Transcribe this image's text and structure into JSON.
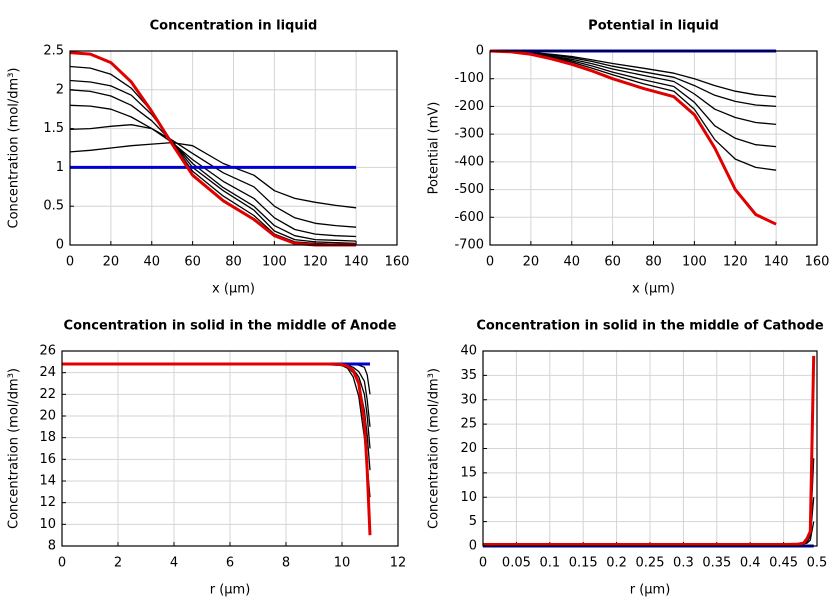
{
  "chart_data": [
    {
      "type": "line",
      "title": "Concentration in liquid",
      "x_label": "x (µm)",
      "y_label": "Concentration (mol/dm³)",
      "x": [
        0,
        10,
        20,
        30,
        40,
        50,
        60,
        75,
        90,
        100,
        110,
        120,
        130,
        140
      ],
      "xlim": [
        0,
        160
      ],
      "xticks": [
        0,
        20,
        40,
        60,
        80,
        100,
        120,
        140,
        160
      ],
      "ylim": [
        0,
        2.5
      ],
      "yticks": [
        0,
        0.5,
        1,
        1.5,
        2,
        2.5
      ],
      "grid": true,
      "series": [
        {
          "color": "#000000",
          "values": [
            1.2,
            1.22,
            1.25,
            1.28,
            1.3,
            1.32,
            1.28,
            1.05,
            0.9,
            0.7,
            0.6,
            0.55,
            0.51,
            0.48
          ]
        },
        {
          "color": "#000000",
          "values": [
            1.49,
            1.5,
            1.53,
            1.55,
            1.5,
            1.35,
            1.18,
            0.93,
            0.75,
            0.5,
            0.35,
            0.28,
            0.25,
            0.23
          ]
        },
        {
          "color": "#000000",
          "values": [
            1.8,
            1.79,
            1.75,
            1.65,
            1.5,
            1.32,
            1.1,
            0.82,
            0.6,
            0.35,
            0.2,
            0.14,
            0.12,
            0.11
          ]
        },
        {
          "color": "#000000",
          "values": [
            2.0,
            1.98,
            1.92,
            1.8,
            1.6,
            1.33,
            1.05,
            0.74,
            0.5,
            0.25,
            0.12,
            0.07,
            0.06,
            0.05
          ]
        },
        {
          "color": "#000000",
          "values": [
            2.12,
            2.1,
            2.05,
            1.93,
            1.68,
            1.33,
            1.0,
            0.7,
            0.45,
            0.18,
            0.07,
            0.04,
            0.03,
            0.02
          ]
        },
        {
          "color": "#000000",
          "values": [
            2.3,
            2.28,
            2.2,
            2.02,
            1.72,
            1.32,
            0.95,
            0.63,
            0.38,
            0.14,
            0.04,
            0.02,
            0.01,
            0.01
          ]
        },
        {
          "color": "#0000cc",
          "values": [
            1,
            1,
            1,
            1,
            1,
            1,
            1,
            1,
            1,
            1,
            1,
            1,
            1,
            1
          ]
        },
        {
          "color": "#e00000",
          "values": [
            2.48,
            2.46,
            2.35,
            2.1,
            1.72,
            1.3,
            0.9,
            0.57,
            0.33,
            0.12,
            0.02,
            0,
            0,
            0
          ]
        }
      ]
    },
    {
      "type": "line",
      "title": "Potential in liquid",
      "x_label": "x (µm)",
      "y_label": "Potential (mV)",
      "x": [
        0,
        10,
        20,
        30,
        40,
        50,
        60,
        75,
        90,
        100,
        110,
        120,
        130,
        140
      ],
      "xlim": [
        0,
        160
      ],
      "xticks": [
        0,
        20,
        40,
        60,
        80,
        100,
        120,
        140,
        160
      ],
      "ylim": [
        -700,
        0
      ],
      "yticks": [
        -700,
        -600,
        -500,
        -400,
        -300,
        -200,
        -100,
        0
      ],
      "grid": true,
      "series": [
        {
          "color": "#000000",
          "values": [
            0,
            -1,
            -5,
            -12,
            -20,
            -32,
            -45,
            -62,
            -80,
            -100,
            -125,
            -145,
            -158,
            -165
          ]
        },
        {
          "color": "#000000",
          "values": [
            0,
            -1,
            -6,
            -14,
            -24,
            -38,
            -55,
            -75,
            -95,
            -125,
            -160,
            -182,
            -195,
            -200
          ]
        },
        {
          "color": "#000000",
          "values": [
            0,
            -2,
            -8,
            -18,
            -30,
            -46,
            -65,
            -88,
            -110,
            -155,
            -210,
            -240,
            -258,
            -265
          ]
        },
        {
          "color": "#000000",
          "values": [
            0,
            -2,
            -9,
            -21,
            -35,
            -54,
            -76,
            -104,
            -128,
            -185,
            -270,
            -315,
            -338,
            -345
          ]
        },
        {
          "color": "#000000",
          "values": [
            0,
            -2,
            -10,
            -24,
            -40,
            -62,
            -86,
            -118,
            -145,
            -210,
            -320,
            -390,
            -420,
            -430
          ]
        },
        {
          "color": "#0000cc",
          "values": [
            0,
            0,
            0,
            0,
            0,
            0,
            0,
            0,
            0,
            0,
            0,
            0,
            0,
            0
          ]
        },
        {
          "color": "#e00000",
          "values": [
            0,
            -3,
            -12,
            -28,
            -48,
            -72,
            -100,
            -135,
            -165,
            -230,
            -350,
            -500,
            -590,
            -625
          ]
        }
      ]
    },
    {
      "type": "line",
      "title": "Concentration in solid in the middle of Anode",
      "x_label": "r (µm)",
      "y_label": "Concentration (mol/dm³)",
      "x": [
        0,
        2,
        4,
        6,
        8,
        9,
        9.5,
        10,
        10.2,
        10.4,
        10.6,
        10.8,
        10.9,
        11
      ],
      "xlim": [
        0,
        12
      ],
      "xticks": [
        0,
        2,
        4,
        6,
        8,
        10,
        12
      ],
      "ylim": [
        8,
        26
      ],
      "yticks": [
        8,
        10,
        12,
        14,
        16,
        18,
        20,
        22,
        24,
        26
      ],
      "grid": true,
      "series": [
        {
          "color": "#000000",
          "values": [
            24.8,
            24.8,
            24.8,
            24.8,
            24.8,
            24.8,
            24.8,
            24.8,
            24.8,
            24.75,
            24.7,
            24.5,
            23.8,
            22
          ]
        },
        {
          "color": "#000000",
          "values": [
            24.8,
            24.8,
            24.8,
            24.8,
            24.8,
            24.8,
            24.8,
            24.78,
            24.7,
            24.5,
            24.1,
            23.2,
            21.5,
            19
          ]
        },
        {
          "color": "#000000",
          "values": [
            24.8,
            24.8,
            24.8,
            24.8,
            24.8,
            24.8,
            24.8,
            24.75,
            24.6,
            24.3,
            23.6,
            22,
            20,
            17
          ]
        },
        {
          "color": "#000000",
          "values": [
            24.8,
            24.8,
            24.8,
            24.8,
            24.8,
            24.8,
            24.8,
            24.7,
            24.5,
            24,
            23,
            20.5,
            18.2,
            15
          ]
        },
        {
          "color": "#000000",
          "values": [
            24.8,
            24.8,
            24.8,
            24.8,
            24.8,
            24.8,
            24.75,
            24.65,
            24.4,
            23.6,
            21.8,
            18,
            15.5,
            12.5
          ]
        },
        {
          "color": "#0000cc",
          "values": [
            24.8,
            24.8,
            24.8,
            24.8,
            24.8,
            24.8,
            24.8,
            24.8,
            24.8,
            24.8,
            24.8,
            24.8,
            24.8,
            24.8
          ]
        },
        {
          "color": "#e00000",
          "values": [
            24.8,
            24.8,
            24.8,
            24.8,
            24.8,
            24.8,
            24.8,
            24.75,
            24.6,
            24.2,
            23,
            19.5,
            15,
            9
          ]
        }
      ]
    },
    {
      "type": "line",
      "title": "Concentration in solid in the middle of Cathode",
      "x_label": "r (µm)",
      "y_label": "Concentration (mol/dm³)",
      "x": [
        0,
        0.1,
        0.2,
        0.3,
        0.4,
        0.45,
        0.47,
        0.48,
        0.485,
        0.49,
        0.495
      ],
      "xlim": [
        0,
        0.5
      ],
      "xticks": [
        0,
        0.05,
        0.1,
        0.15,
        0.2,
        0.25,
        0.3,
        0.35,
        0.4,
        0.45,
        0.5
      ],
      "ylim": [
        0,
        40
      ],
      "yticks": [
        0,
        5,
        10,
        15,
        20,
        25,
        30,
        35,
        40
      ],
      "grid": true,
      "series": [
        {
          "color": "#000000",
          "values": [
            0.3,
            0.3,
            0.3,
            0.3,
            0.3,
            0.3,
            0.32,
            0.4,
            0.6,
            1.2,
            5
          ]
        },
        {
          "color": "#000000",
          "values": [
            0.3,
            0.3,
            0.3,
            0.3,
            0.3,
            0.3,
            0.33,
            0.45,
            0.8,
            2,
            10
          ]
        },
        {
          "color": "#000000",
          "values": [
            0.3,
            0.3,
            0.3,
            0.3,
            0.3,
            0.3,
            0.34,
            0.5,
            1,
            2.5,
            18
          ]
        },
        {
          "color": "#0000cc",
          "values": [
            0,
            0,
            0,
            0,
            0,
            0,
            0,
            0,
            0,
            0,
            0
          ]
        },
        {
          "color": "#e00000",
          "values": [
            0.3,
            0.3,
            0.3,
            0.3,
            0.3,
            0.3,
            0.35,
            0.6,
            1.5,
            3,
            39
          ]
        }
      ]
    }
  ]
}
